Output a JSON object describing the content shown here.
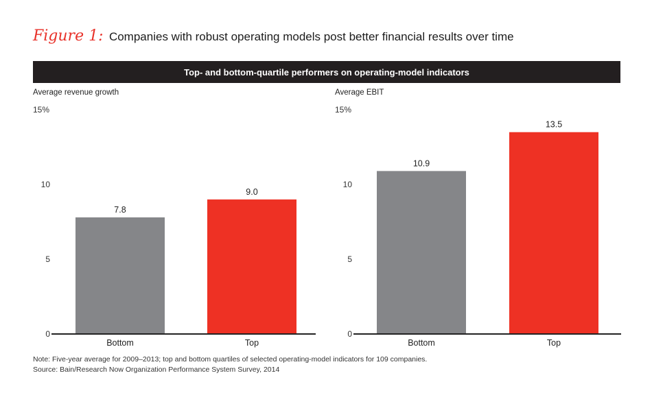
{
  "figure": {
    "label": "Figure 1:",
    "title": "Companies with robust operating models post better financial results over time",
    "banner": "Top- and bottom-quartile performers on operating-model indicators"
  },
  "colors": {
    "bottom": "#858689",
    "top": "#ee3124",
    "banner": "#231f20",
    "accent": "#e8322a"
  },
  "chart_data": [
    {
      "type": "bar",
      "title": "Average revenue growth",
      "ylabel": "Average revenue growth",
      "categories": [
        "Bottom",
        "Top"
      ],
      "values": [
        7.8,
        9.0
      ],
      "labels": [
        "7.8",
        "9.0"
      ],
      "ylim": [
        0,
        15
      ],
      "yticks": [
        0,
        5,
        10,
        15
      ],
      "ytick_labels": [
        "0",
        "5",
        "10",
        "15%"
      ],
      "grid": false
    },
    {
      "type": "bar",
      "title": "Average EBIT",
      "ylabel": "Average EBIT",
      "categories": [
        "Bottom",
        "Top"
      ],
      "values": [
        10.9,
        13.5
      ],
      "labels": [
        "10.9",
        "13.5"
      ],
      "ylim": [
        0,
        15
      ],
      "yticks": [
        0,
        5,
        10,
        15
      ],
      "ytick_labels": [
        "0",
        "5",
        "10",
        "15%"
      ],
      "grid": false
    }
  ],
  "footer": {
    "note": "Note: Five-year average for 2009–2013; top and bottom quartiles of selected operating-model indicators for 109 companies.",
    "source": "Source: Bain/Research Now Organization Performance System Survey, 2014"
  }
}
